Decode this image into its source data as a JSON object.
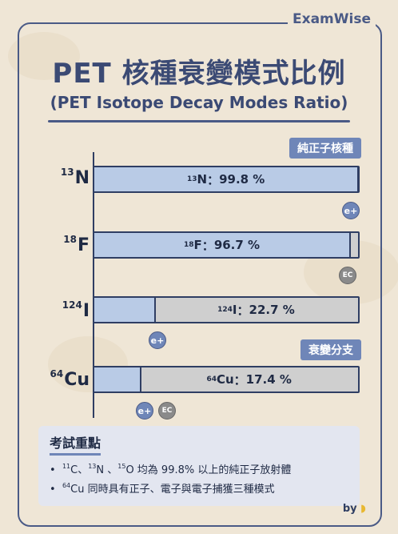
{
  "brand": "ExamWise",
  "title": "PET 核種衰變模式比例",
  "subtitle": "(PET Isotope Decay Modes Ratio)",
  "tags": {
    "pure_positron": "純正子核種",
    "branching": "衰變分支"
  },
  "colors": {
    "positron": "#b9cbe6",
    "other": "#cfcfcf",
    "accent": "#6f86b8",
    "title": "#3b4a74"
  },
  "chart_data": {
    "type": "bar",
    "orientation": "horizontal",
    "title": "PET 核種衰變模式比例",
    "subtitle": "(PET Isotope Decay Modes Ratio)",
    "xlim": [
      0,
      100
    ],
    "categories": [
      {
        "mass": "13",
        "symbol": "N",
        "value": 99.8,
        "value_text": "99.8 %",
        "modes": [
          "e+"
        ]
      },
      {
        "mass": "18",
        "symbol": "F",
        "value": 96.7,
        "value_text": "96.7 %",
        "modes": [
          "EC"
        ]
      },
      {
        "mass": "124",
        "symbol": "I",
        "value": 22.7,
        "value_text": "22.7 %",
        "modes": [
          "e+"
        ]
      },
      {
        "mass": "64",
        "symbol": "Cu",
        "value": 17.4,
        "value_text": "17.4 %",
        "modes": [
          "e+",
          "EC"
        ]
      }
    ],
    "separator": "："
  },
  "notes": {
    "title": "考試重點",
    "line1": {
      "m1": "11",
      "s1": "C、",
      "m2": "13",
      "s2": "N 、",
      "m3": "15",
      "s3": "O 均為 99.8% 以上的純正子放射體"
    },
    "line2": {
      "m1": "64",
      "s1": "Cu 同時具有正子、電子與電子捕獲三種模式"
    }
  },
  "byline": "by"
}
